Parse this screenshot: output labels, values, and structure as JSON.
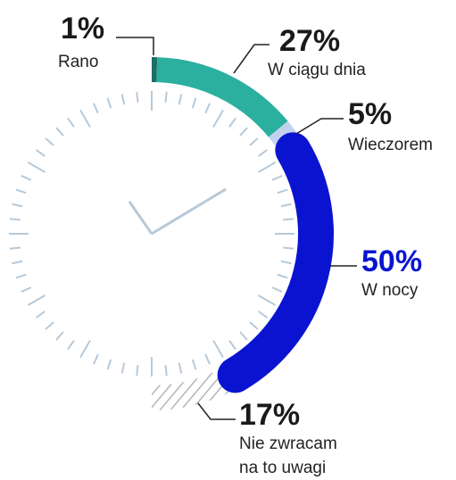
{
  "chart_data": {
    "type": "radial",
    "categories": [
      "Rano",
      "W ciągu dnia",
      "Wieczorem",
      "W nocy",
      "Nie zwracam na to uwagi"
    ],
    "values": [
      1,
      27,
      5,
      50,
      17
    ],
    "value_labels": [
      "1%",
      "27%",
      "5%",
      "50%",
      "17%"
    ],
    "colors": [
      "#1d6e64",
      "#2bb0a0",
      "#c2d2ee",
      "#0a14d0",
      "hatch"
    ]
  }
}
